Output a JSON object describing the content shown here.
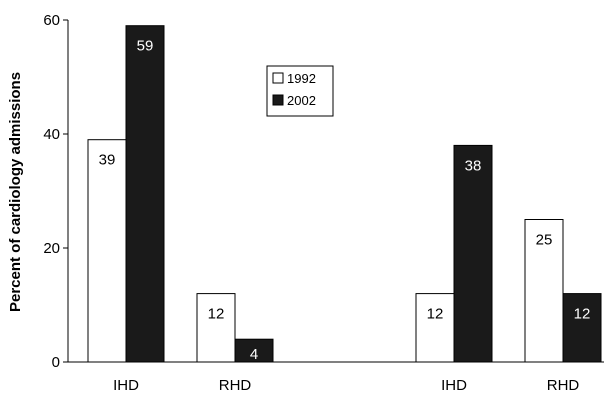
{
  "chart_data": {
    "type": "bar",
    "categories": [
      "IHD",
      "RHD",
      "IHD",
      "RHD"
    ],
    "groups": [
      {
        "category": "IHD",
        "values": [
          39,
          59
        ]
      },
      {
        "category": "RHD",
        "values": [
          12,
          4
        ]
      },
      {
        "category": "IHD",
        "values": [
          12,
          38
        ]
      },
      {
        "category": "RHD",
        "values": [
          25,
          12
        ]
      }
    ],
    "series": [
      {
        "name": "1992",
        "color": "#ffffff",
        "label_color": "#000000",
        "values": [
          39,
          12,
          12,
          25
        ]
      },
      {
        "name": "2002",
        "color": "#1a1a1a",
        "label_color": "#ffffff",
        "values": [
          59,
          4,
          38,
          12
        ]
      }
    ],
    "ylabel": "Percent of cardiology admissions",
    "xlabel": "",
    "ylim": [
      0,
      60
    ],
    "yticks": [
      0,
      20,
      40,
      60
    ],
    "grid": false,
    "legend": "top-center"
  }
}
